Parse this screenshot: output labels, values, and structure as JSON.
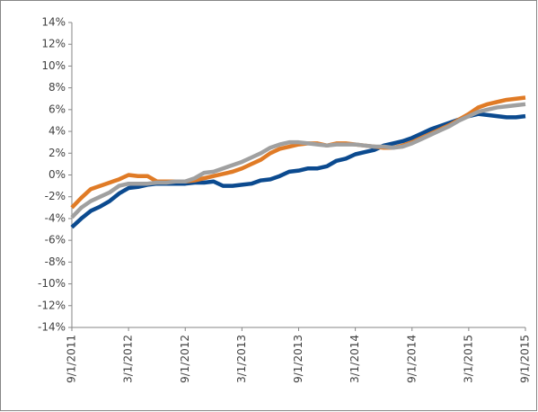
{
  "chart_data": {
    "type": "line",
    "categories": [
      "9/1/2011",
      null,
      null,
      null,
      null,
      null,
      "3/1/2012",
      null,
      null,
      null,
      null,
      null,
      "9/1/2012",
      null,
      null,
      null,
      null,
      null,
      "3/1/2013",
      null,
      null,
      null,
      null,
      null,
      "9/1/2013",
      null,
      null,
      null,
      null,
      null,
      "3/1/2014",
      null,
      null,
      null,
      null,
      null,
      "9/1/2014",
      null,
      null,
      null,
      null,
      null,
      "3/1/2015",
      null,
      null,
      null,
      null,
      null,
      "9/1/2015"
    ],
    "series": [
      {
        "color": "#0b4a8f",
        "values": [
          -4.8,
          -4.0,
          -3.3,
          -2.9,
          -2.4,
          -1.7,
          -1.2,
          -1.1,
          -0.9,
          -0.8,
          -0.8,
          -0.8,
          -0.8,
          -0.7,
          -0.7,
          -0.6,
          -1.0,
          -1.0,
          -0.9,
          -0.8,
          -0.5,
          -0.4,
          -0.1,
          0.3,
          0.4,
          0.6,
          0.6,
          0.8,
          1.3,
          1.5,
          1.9,
          2.1,
          2.3,
          2.7,
          2.9,
          3.1,
          3.4,
          3.8,
          4.2,
          4.5,
          4.8,
          5.1,
          5.4,
          5.6,
          5.5,
          5.4,
          5.3,
          5.3,
          5.4
        ]
      },
      {
        "color": "#e07b26",
        "values": [
          -3.0,
          -2.1,
          -1.3,
          -1.0,
          -0.7,
          -0.4,
          0.0,
          -0.1,
          -0.1,
          -0.6,
          -0.6,
          -0.6,
          -0.6,
          -0.5,
          -0.3,
          -0.1,
          0.1,
          0.3,
          0.6,
          1.0,
          1.4,
          2.0,
          2.4,
          2.6,
          2.8,
          2.9,
          2.9,
          2.7,
          2.9,
          2.9,
          2.8,
          2.7,
          2.6,
          2.5,
          2.5,
          2.7,
          3.0,
          3.4,
          3.8,
          4.2,
          4.6,
          5.1,
          5.6,
          6.2,
          6.5,
          6.7,
          6.9,
          7.0,
          7.1
        ]
      },
      {
        "color": "#a0a0a0",
        "values": [
          -3.9,
          -3.0,
          -2.4,
          -2.0,
          -1.6,
          -1.0,
          -0.8,
          -0.8,
          -0.8,
          -0.7,
          -0.7,
          -0.6,
          -0.6,
          -0.3,
          0.2,
          0.3,
          0.6,
          0.9,
          1.2,
          1.6,
          2.0,
          2.5,
          2.8,
          3.0,
          3.0,
          2.9,
          2.8,
          2.7,
          2.8,
          2.8,
          2.8,
          2.7,
          2.6,
          2.6,
          2.5,
          2.6,
          2.9,
          3.3,
          3.7,
          4.1,
          4.5,
          5.0,
          5.4,
          5.8,
          6.0,
          6.2,
          6.3,
          6.4,
          6.5
        ]
      }
    ],
    "ylim": [
      -14,
      14
    ],
    "yticks": [
      {
        "value": -14,
        "label": "-14%"
      },
      {
        "value": -12,
        "label": "-12%"
      },
      {
        "value": -10,
        "label": "-10%"
      },
      {
        "value": -8,
        "label": "-8%"
      },
      {
        "value": -6,
        "label": "-6%"
      },
      {
        "value": -4,
        "label": "-4%"
      },
      {
        "value": -2,
        "label": "-2%"
      },
      {
        "value": 0,
        "label": "0%"
      },
      {
        "value": 2,
        "label": "2%"
      },
      {
        "value": 4,
        "label": "4%"
      },
      {
        "value": 6,
        "label": "6%"
      },
      {
        "value": 8,
        "label": "8%"
      },
      {
        "value": 10,
        "label": "10%"
      },
      {
        "value": 12,
        "label": "12%"
      },
      {
        "value": 14,
        "label": "14%"
      }
    ],
    "grid": false
  }
}
